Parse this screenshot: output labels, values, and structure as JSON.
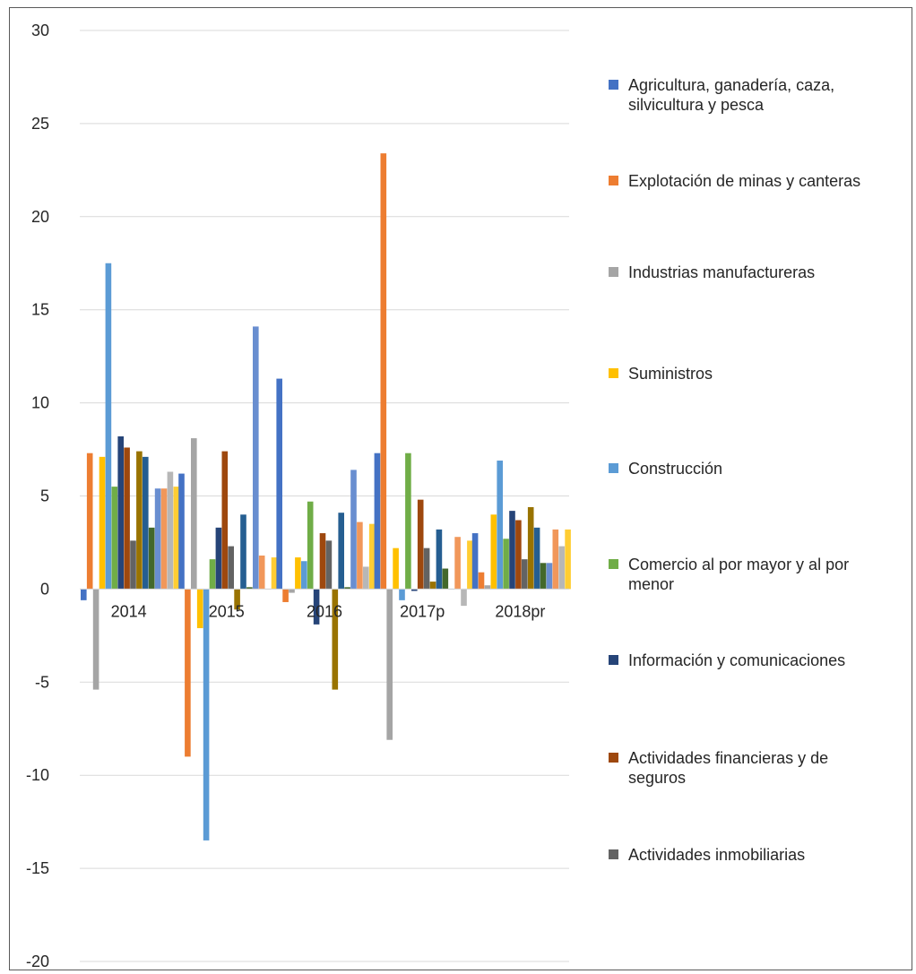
{
  "chart_data": {
    "type": "bar",
    "categories": [
      "2014",
      "2015",
      "2016",
      "2017p",
      "2018pr"
    ],
    "ylim": [
      -20,
      30
    ],
    "yticks": [
      30,
      25,
      20,
      15,
      10,
      5,
      0,
      -5,
      -10,
      -15,
      -20
    ],
    "grid": true,
    "legend_position": "right",
    "series": [
      {
        "name": "Agricultura, ganadería, caza, silvicultura y pesca",
        "color": "#4472C4",
        "values": [
          -0.6,
          6.2,
          11.3,
          7.3,
          3.0
        ]
      },
      {
        "name": "Explotación de minas y canteras",
        "color": "#ED7D31",
        "values": [
          7.3,
          -9.0,
          -0.7,
          23.4,
          0.9
        ]
      },
      {
        "name": "Industrias manufactureras",
        "color": "#A5A5A5",
        "values": [
          -5.4,
          8.1,
          -0.2,
          -8.1,
          0.2
        ]
      },
      {
        "name": "Suministros",
        "color": "#FFC000",
        "values": [
          7.1,
          -2.1,
          1.7,
          2.2,
          4.0
        ]
      },
      {
        "name": "Construcción",
        "color": "#5B9BD5",
        "values": [
          17.5,
          -13.5,
          1.5,
          -0.6,
          6.9
        ]
      },
      {
        "name": "Comercio al por mayor y al por menor",
        "color": "#70AD47",
        "values": [
          5.5,
          1.6,
          4.7,
          7.3,
          2.7
        ]
      },
      {
        "name": "Información y comunicaciones",
        "color": "#264478",
        "values": [
          8.2,
          3.3,
          -1.9,
          -0.1,
          4.2
        ]
      },
      {
        "name": "Actividades financieras y de seguros",
        "color": "#9E480E",
        "values": [
          7.6,
          7.4,
          3.0,
          4.8,
          3.7
        ]
      },
      {
        "name": "Actividades inmobiliarias",
        "color": "#636363",
        "values": [
          2.6,
          2.3,
          2.6,
          2.2,
          1.6
        ]
      },
      {
        "name": "",
        "color": "#997300",
        "values": [
          7.4,
          -1.1,
          -5.4,
          0.4,
          4.4
        ]
      },
      {
        "name": "",
        "color": "#255E91",
        "values": [
          7.1,
          4.0,
          4.1,
          3.2,
          3.3
        ]
      },
      {
        "name": "",
        "color": "#43682B",
        "values": [
          3.3,
          0.1,
          0.1,
          1.1,
          1.4
        ]
      },
      {
        "name": "",
        "color": "#698ED0",
        "values": [
          5.4,
          14.1,
          6.4,
          0.0,
          1.4
        ]
      },
      {
        "name": "",
        "color": "#F1975A",
        "values": [
          5.4,
          1.8,
          3.6,
          2.8,
          3.2
        ]
      },
      {
        "name": "",
        "color": "#B7B7B7",
        "values": [
          6.3,
          0.0,
          1.2,
          -0.9,
          2.3
        ]
      },
      {
        "name": "",
        "color": "#FFCD33",
        "values": [
          5.5,
          1.7,
          3.5,
          2.6,
          3.2
        ]
      }
    ]
  }
}
